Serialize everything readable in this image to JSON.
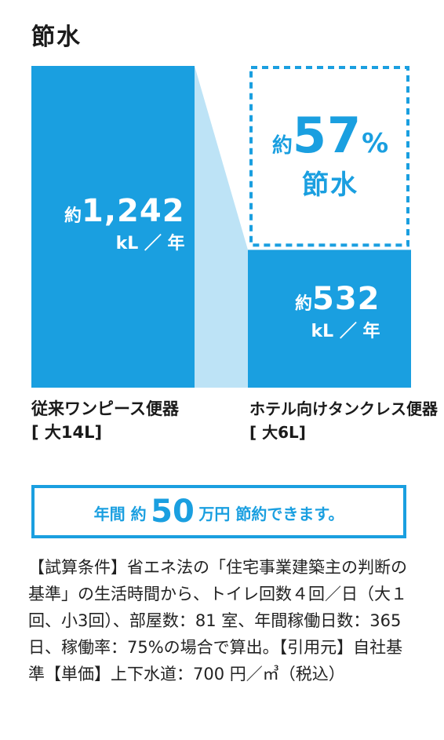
{
  "title": "節水",
  "chart_data": {
    "type": "bar",
    "categories": [
      "従来ワンピース便器",
      "ホテル向けタンクレス便器"
    ],
    "category_specs": [
      "[ 大14L]",
      "[ 大6L]"
    ],
    "values": [
      1242,
      532
    ],
    "value_prefix": "約",
    "value_labels": [
      "1,242",
      "532"
    ],
    "unit": "kL ／ 年",
    "colors": {
      "bar": "#1a9fe0",
      "connector": "#bde3f6",
      "accent": "#1a9fe0"
    }
  },
  "saving": {
    "prefix": "約",
    "percent": "57",
    "sign": "%",
    "label": "節水"
  },
  "banner": {
    "part1": "年間 約",
    "amount": "50",
    "part2": "万円 節約できます。"
  },
  "note": "【試算条件】省エネ法の「住宅事業建築主の判断の基準」の生活時間から、トイレ回数４回／日（大１回、小3回）、部屋数：81 室、年間稼働日数：365 日、稼働率：75%の場合で算出。【引用元】自社基準【単価】上下水道：700 円／㎥（税込）"
}
